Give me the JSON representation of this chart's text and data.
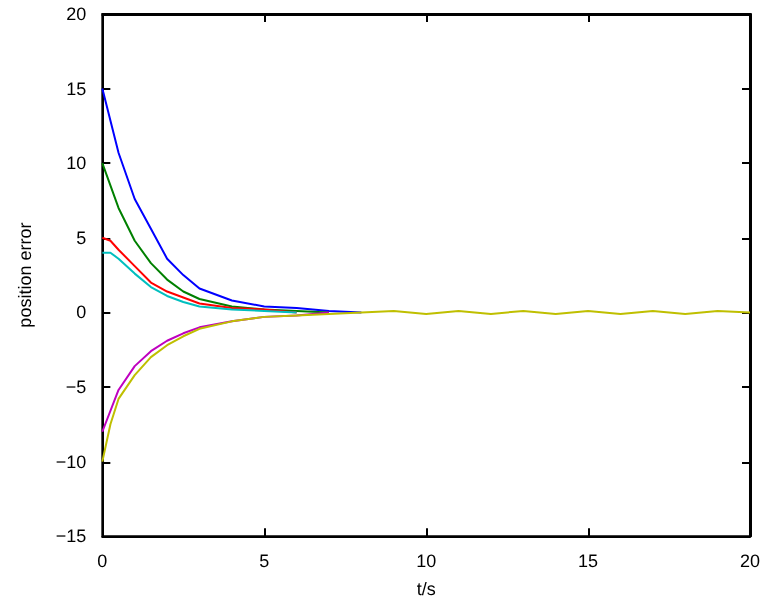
{
  "chart_data": {
    "type": "line",
    "xlabel": "t/s",
    "ylabel": "position error",
    "xlim": [
      0,
      20
    ],
    "xticks": [
      0,
      5,
      10,
      15,
      20
    ],
    "ylim": [
      -15,
      20
    ],
    "yticks": [
      {
        "value": -15,
        "label": "−15"
      },
      {
        "value": -10,
        "label": "−10"
      },
      {
        "value": -5,
        "label": "−5"
      },
      0,
      5,
      10,
      15,
      20
    ],
    "marker": "none",
    "line_style": "solid",
    "series": [
      {
        "color": "#0000ff",
        "x": [
          0,
          0.5,
          1,
          1.5,
          2,
          2.5,
          3,
          4,
          5,
          6,
          7,
          8
        ],
        "values": [
          15,
          10.7,
          7.6,
          5.6,
          3.6,
          2.5,
          1.6,
          0.8,
          0.4,
          0.3,
          0.1,
          0
        ]
      },
      {
        "color": "#008000",
        "x": [
          0,
          0.5,
          1,
          1.5,
          2,
          2.5,
          3,
          4,
          5,
          6,
          7
        ],
        "values": [
          10,
          7,
          4.8,
          3.3,
          2.2,
          1.4,
          0.9,
          0.4,
          0.2,
          0.1,
          0
        ]
      },
      {
        "color": "#ff0000",
        "x": [
          0,
          0.25,
          0.5,
          1,
          1.5,
          2,
          2.5,
          3,
          4,
          5,
          6
        ],
        "values": [
          5,
          4.8,
          4.2,
          3.1,
          2,
          1.4,
          1,
          0.6,
          0.3,
          0.2,
          0
        ]
      },
      {
        "color": "#00bfbf",
        "x": [
          0,
          0.25,
          0.5,
          1,
          1.5,
          2,
          2.5,
          3,
          4,
          5,
          6
        ],
        "values": [
          4,
          4,
          3.6,
          2.6,
          1.7,
          1.1,
          0.7,
          0.4,
          0.2,
          0.1,
          0
        ]
      },
      {
        "color": "#bf00bf",
        "x": [
          0,
          0.5,
          1,
          1.5,
          2,
          2.5,
          3,
          4,
          5,
          6,
          7
        ],
        "values": [
          -8,
          -5.2,
          -3.6,
          -2.6,
          -1.9,
          -1.4,
          -1,
          -0.6,
          -0.3,
          -0.2,
          0
        ]
      },
      {
        "color": "#bfbf00",
        "x": [
          0,
          0.25,
          0.5,
          1,
          1.5,
          2,
          2.5,
          3,
          4,
          5,
          6,
          7,
          8,
          9,
          10,
          11,
          12,
          13,
          14,
          15,
          16,
          17,
          18,
          19,
          20
        ],
        "values": [
          -10,
          -7.5,
          -5.8,
          -4.2,
          -3,
          -2.2,
          -1.6,
          -1.1,
          -0.6,
          -0.3,
          -0.2,
          -0.1,
          0,
          0.1,
          -0.1,
          0.1,
          -0.1,
          0.1,
          -0.1,
          0.1,
          -0.1,
          0.1,
          -0.1,
          0.1,
          0
        ]
      }
    ]
  }
}
